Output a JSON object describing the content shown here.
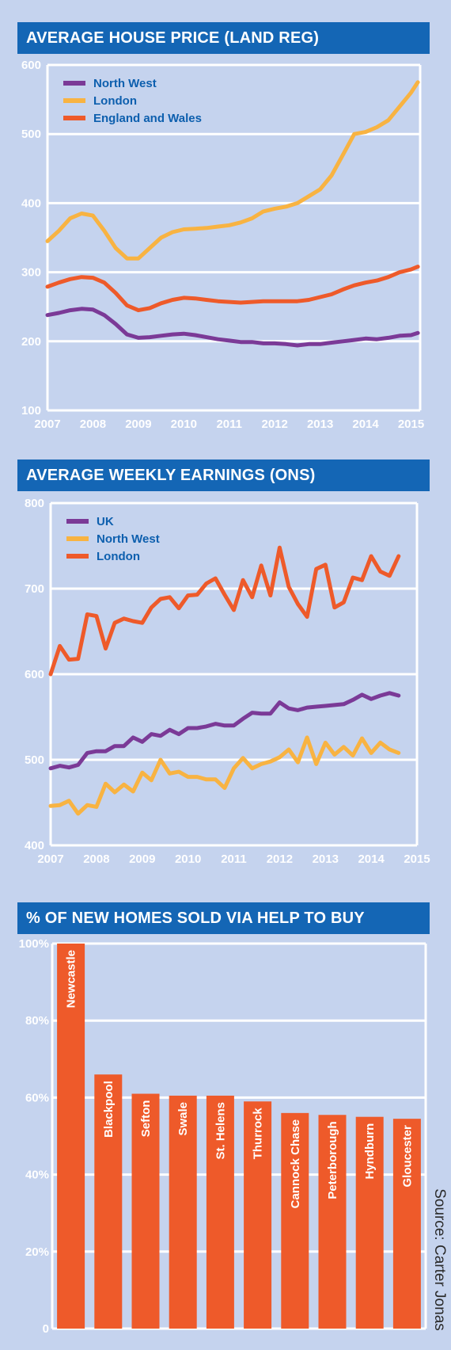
{
  "source": "Source: Carter Jonas",
  "colors": {
    "background": "#c5d3ee",
    "title_bar": "#1466b5",
    "purple": "#7b3a97",
    "yellow": "#f8b342",
    "orange": "#ee5a2a"
  },
  "chart_data": [
    {
      "type": "line",
      "title": "AVERAGE HOUSE PRICE (LAND REG)",
      "x_ticks": [
        "2007",
        "2008",
        "2009",
        "2010",
        "2011",
        "2012",
        "2013",
        "2014",
        "2015"
      ],
      "y_ticks": [
        "100",
        "200",
        "300",
        "400",
        "500",
        "600"
      ],
      "ylim": [
        100,
        600
      ],
      "xlim": [
        2007,
        2015.2
      ],
      "legend": [
        "North West",
        "London",
        "England and Wales"
      ],
      "grid": true,
      "series": [
        {
          "name": "North West",
          "color": "#7b3a97",
          "x": [
            2007.0,
            2007.25,
            2007.5,
            2007.75,
            2008.0,
            2008.25,
            2008.5,
            2008.75,
            2009.0,
            2009.25,
            2009.5,
            2009.75,
            2010.0,
            2010.25,
            2010.5,
            2010.75,
            2011.0,
            2011.25,
            2011.5,
            2011.75,
            2012.0,
            2012.25,
            2012.5,
            2012.75,
            2013.0,
            2013.25,
            2013.5,
            2013.75,
            2014.0,
            2014.25,
            2014.5,
            2014.75,
            2015.0,
            2015.15
          ],
          "y": [
            238,
            241,
            245,
            247,
            246,
            238,
            225,
            210,
            205,
            206,
            208,
            210,
            211,
            209,
            206,
            203,
            201,
            199,
            199,
            197,
            197,
            196,
            194,
            196,
            196,
            198,
            200,
            202,
            204,
            203,
            205,
            208,
            209,
            212
          ]
        },
        {
          "name": "London",
          "color": "#f8b342",
          "x": [
            2007.0,
            2007.25,
            2007.5,
            2007.75,
            2008.0,
            2008.25,
            2008.5,
            2008.75,
            2009.0,
            2009.25,
            2009.5,
            2009.75,
            2010.0,
            2010.25,
            2010.5,
            2010.75,
            2011.0,
            2011.25,
            2011.5,
            2011.75,
            2012.0,
            2012.25,
            2012.5,
            2012.75,
            2013.0,
            2013.25,
            2013.5,
            2013.75,
            2014.0,
            2014.25,
            2014.5,
            2014.75,
            2015.0,
            2015.15
          ],
          "y": [
            345,
            360,
            378,
            385,
            382,
            360,
            335,
            320,
            320,
            335,
            350,
            358,
            362,
            363,
            364,
            366,
            368,
            372,
            378,
            388,
            392,
            395,
            400,
            410,
            420,
            440,
            470,
            500,
            503,
            510,
            520,
            540,
            560,
            575
          ]
        },
        {
          "name": "England and Wales",
          "color": "#ee5a2a",
          "x": [
            2007.0,
            2007.25,
            2007.5,
            2007.75,
            2008.0,
            2008.25,
            2008.5,
            2008.75,
            2009.0,
            2009.25,
            2009.5,
            2009.75,
            2010.0,
            2010.25,
            2010.5,
            2010.75,
            2011.0,
            2011.25,
            2011.5,
            2011.75,
            2012.0,
            2012.25,
            2012.5,
            2012.75,
            2013.0,
            2013.25,
            2013.5,
            2013.75,
            2014.0,
            2014.25,
            2014.5,
            2014.75,
            2015.0,
            2015.15
          ],
          "y": [
            279,
            285,
            290,
            293,
            292,
            285,
            270,
            252,
            245,
            248,
            255,
            260,
            263,
            262,
            260,
            258,
            257,
            256,
            257,
            258,
            258,
            258,
            258,
            260,
            264,
            268,
            275,
            281,
            285,
            288,
            293,
            300,
            304,
            308
          ]
        }
      ]
    },
    {
      "type": "line",
      "title": "AVERAGE WEEKLY EARNINGS (ONS)",
      "x_ticks": [
        "2007",
        "2008",
        "2009",
        "2010",
        "2011",
        "2012",
        "2013",
        "2014",
        "2015"
      ],
      "y_ticks": [
        "400",
        "500",
        "600",
        "700",
        "800"
      ],
      "ylim": [
        400,
        800
      ],
      "xlim": [
        2007,
        2015
      ],
      "legend": [
        "UK",
        "North West",
        "London"
      ],
      "grid": true,
      "series": [
        {
          "name": "UK",
          "color": "#7b3a97",
          "x": [
            2007.0,
            2007.2,
            2007.4,
            2007.6,
            2007.8,
            2008.0,
            2008.2,
            2008.4,
            2008.6,
            2008.8,
            2009.0,
            2009.2,
            2009.4,
            2009.6,
            2009.8,
            2010.0,
            2010.2,
            2010.4,
            2010.6,
            2010.8,
            2011.0,
            2011.2,
            2011.4,
            2011.6,
            2011.8,
            2012.0,
            2012.2,
            2012.4,
            2012.6,
            2012.8,
            2013.0,
            2013.2,
            2013.4,
            2013.6,
            2013.8,
            2014.0,
            2014.2,
            2014.4,
            2014.6
          ],
          "y": [
            490,
            493,
            491,
            494,
            508,
            510,
            510,
            516,
            516,
            526,
            521,
            530,
            528,
            535,
            530,
            537,
            537,
            539,
            542,
            540,
            540,
            548,
            555,
            554,
            554,
            567,
            560,
            558,
            561,
            562,
            563,
            564,
            565,
            570,
            576,
            571,
            575,
            578,
            575
          ]
        },
        {
          "name": "North West",
          "color": "#f8b342",
          "x": [
            2007.0,
            2007.2,
            2007.4,
            2007.6,
            2007.8,
            2008.0,
            2008.2,
            2008.4,
            2008.6,
            2008.8,
            2009.0,
            2009.2,
            2009.4,
            2009.6,
            2009.8,
            2010.0,
            2010.2,
            2010.4,
            2010.6,
            2010.8,
            2011.0,
            2011.2,
            2011.4,
            2011.6,
            2011.8,
            2012.0,
            2012.2,
            2012.4,
            2012.6,
            2012.8,
            2013.0,
            2013.2,
            2013.4,
            2013.6,
            2013.8,
            2014.0,
            2014.2,
            2014.4,
            2014.6
          ],
          "y": [
            446,
            447,
            452,
            437,
            447,
            445,
            472,
            462,
            471,
            463,
            485,
            476,
            500,
            484,
            486,
            480,
            480,
            477,
            477,
            467,
            490,
            502,
            490,
            495,
            498,
            503,
            512,
            497,
            526,
            495,
            520,
            506,
            515,
            505,
            525,
            508,
            520,
            512,
            508
          ]
        },
        {
          "name": "London",
          "color": "#ee5a2a",
          "x": [
            2007.0,
            2007.2,
            2007.4,
            2007.6,
            2007.8,
            2008.0,
            2008.2,
            2008.4,
            2008.6,
            2008.8,
            2009.0,
            2009.2,
            2009.4,
            2009.6,
            2009.8,
            2010.0,
            2010.2,
            2010.4,
            2010.6,
            2010.8,
            2011.0,
            2011.2,
            2011.4,
            2011.6,
            2011.8,
            2012.0,
            2012.2,
            2012.4,
            2012.6,
            2012.8,
            2013.0,
            2013.2,
            2013.4,
            2013.6,
            2013.8,
            2014.0,
            2014.2,
            2014.4,
            2014.6
          ],
          "y": [
            600,
            633,
            617,
            618,
            670,
            668,
            630,
            660,
            665,
            662,
            660,
            678,
            688,
            690,
            677,
            692,
            693,
            706,
            712,
            693,
            675,
            710,
            690,
            727,
            692,
            748,
            702,
            682,
            667,
            723,
            728,
            678,
            684,
            713,
            710,
            738,
            720,
            715,
            738
          ]
        }
      ]
    },
    {
      "type": "bar",
      "title": "% OF NEW HOMES SOLD VIA HELP TO BUY",
      "y_ticks": [
        "0",
        "20%",
        "40%",
        "60%",
        "80%",
        "100%"
      ],
      "ylim": [
        0,
        100
      ],
      "grid": true,
      "color": "#ee5a2a",
      "categories": [
        "Newcastle",
        "Blackpool",
        "Sefton",
        "Swale",
        "St. Helens",
        "Thurrock",
        "Cannock Chase",
        "Peterborough",
        "Hyndburn",
        "Gloucester"
      ],
      "values": [
        100,
        66,
        61,
        60.5,
        60.5,
        59,
        56,
        55.5,
        55,
        54.5
      ]
    }
  ]
}
